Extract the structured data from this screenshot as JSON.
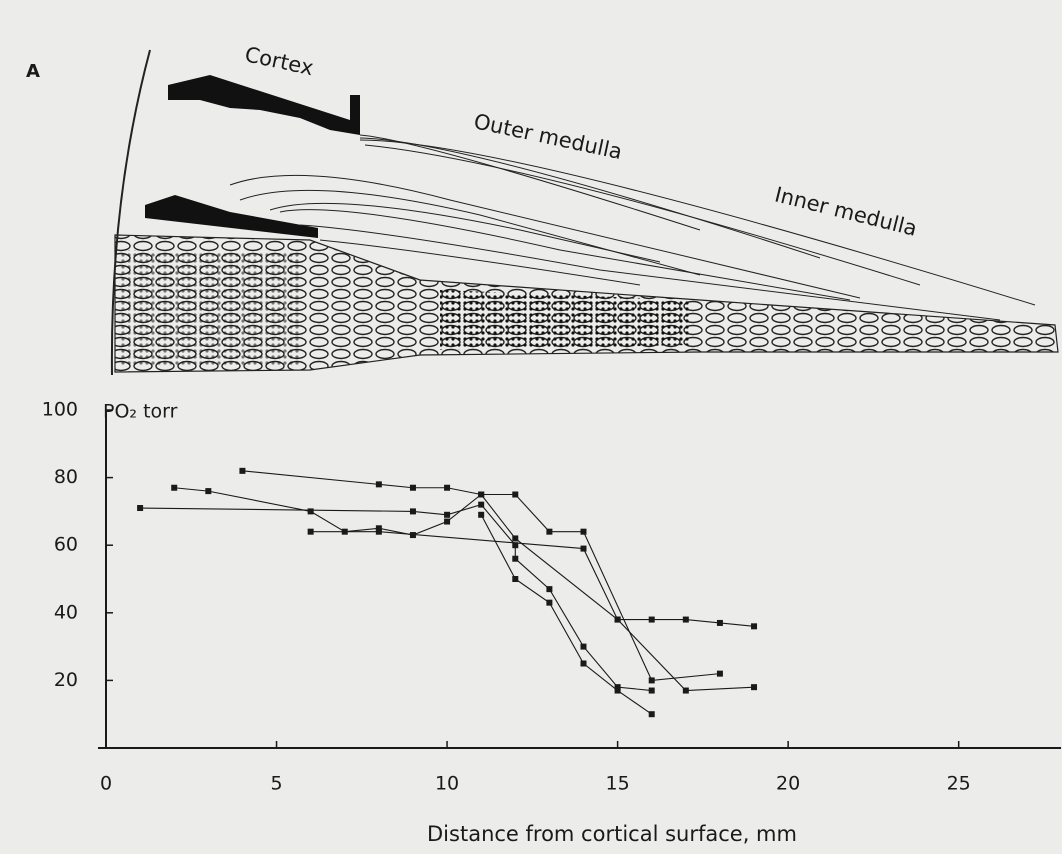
{
  "panel_label": "A",
  "annotations": [
    "Cortex",
    "Outer medulla",
    "Inner medulla"
  ],
  "chart_data": {
    "type": "line",
    "y_label": "PO₂ torr",
    "x_label": "Distance from cortical surface, mm",
    "xlim": [
      0,
      28
    ],
    "ylim": [
      0,
      100
    ],
    "xticks": [
      0,
      5,
      10,
      15,
      20,
      25
    ],
    "yticks": [
      20,
      40,
      60,
      80,
      100
    ],
    "color": "#1a1a1a",
    "series": [
      {
        "x": [
          1,
          9,
          10,
          11,
          12,
          12,
          13,
          14,
          15,
          16
        ],
        "values": [
          71,
          70,
          69,
          72,
          60,
          56,
          47,
          30,
          18,
          17
        ]
      },
      {
        "x": [
          2,
          3,
          6,
          7,
          8,
          9,
          10,
          11,
          12,
          15,
          16,
          17,
          18,
          19
        ],
        "values": [
          77,
          76,
          70,
          64,
          65,
          63,
          67,
          75,
          62,
          38,
          38,
          38,
          37,
          36
        ]
      },
      {
        "x": [
          4,
          8,
          9,
          10,
          11,
          12,
          13,
          14,
          16,
          18
        ],
        "values": [
          82,
          78,
          77,
          77,
          75,
          75,
          64,
          64,
          20,
          22
        ]
      },
      {
        "x": [
          6,
          8,
          14,
          15,
          17,
          19
        ],
        "values": [
          64,
          64,
          59,
          38,
          17,
          18
        ]
      },
      {
        "x": [
          11,
          12,
          13,
          14,
          15,
          16
        ],
        "values": [
          69,
          50,
          43,
          25,
          17,
          10
        ]
      }
    ]
  }
}
